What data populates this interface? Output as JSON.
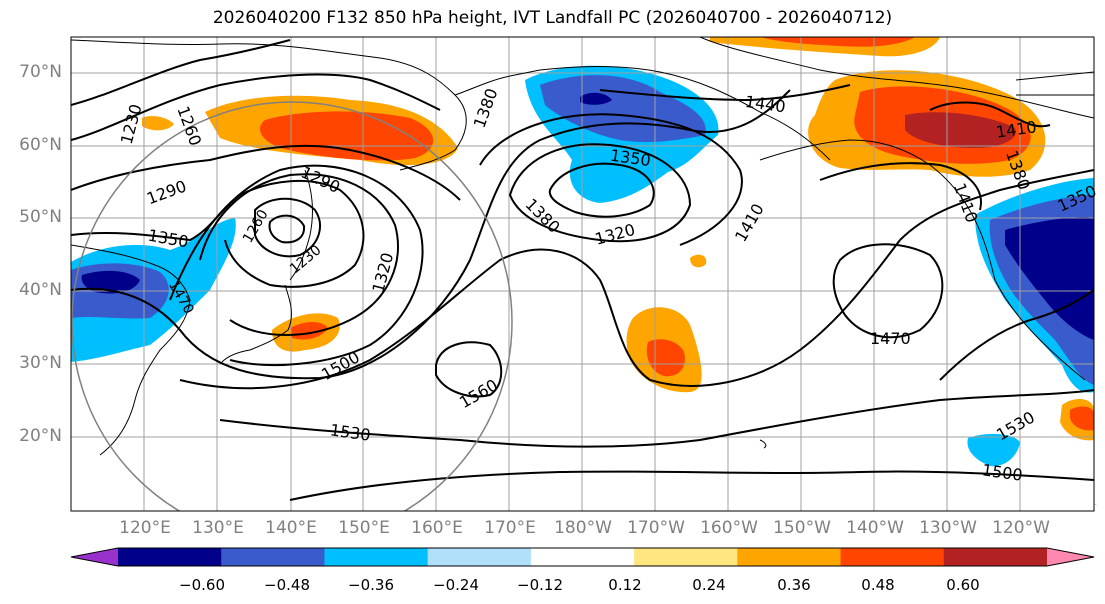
{
  "title": "2026040200 F132 850 hPa height, IVT Landfall PC (2026040700 - 2026040712)",
  "lat_labels": [
    "70°N",
    "60°N",
    "50°N",
    "40°N",
    "30°N",
    "20°N"
  ],
  "lon_labels": [
    "120°E",
    "130°E",
    "140°E",
    "150°E",
    "160°E",
    "170°E",
    "180°W",
    "170°W",
    "160°W",
    "150°W",
    "140°W",
    "130°W",
    "120°W"
  ],
  "contour_labels": [
    "1230",
    "1260",
    "1290",
    "1290",
    "1350",
    "1320",
    "1380",
    "1380",
    "1350",
    "1320",
    "1410",
    "1440",
    "1410",
    "1380",
    "1410",
    "1350",
    "1470",
    "1500",
    "1560",
    "1530",
    "1530",
    "1500",
    "1230",
    "1260",
    "1470",
    "1320"
  ],
  "colorbar": {
    "labels": [
      "−0.60",
      "−0.48",
      "−0.36",
      "−0.24",
      "−0.12",
      "0.12",
      "0.24",
      "0.36",
      "0.48",
      "0.60"
    ],
    "colors": [
      "#9932cc",
      "#00008b",
      "#3a5bcc",
      "#00bfff",
      "#b0e0fa",
      "#ffffff",
      "#ffe680",
      "#ffa500",
      "#ff4500",
      "#b22222",
      "#ff88b0"
    ]
  },
  "colors": {
    "land_outline": "#000000",
    "grid": "#a0a0a0",
    "contour": "#000000",
    "circle": "#808080"
  }
}
